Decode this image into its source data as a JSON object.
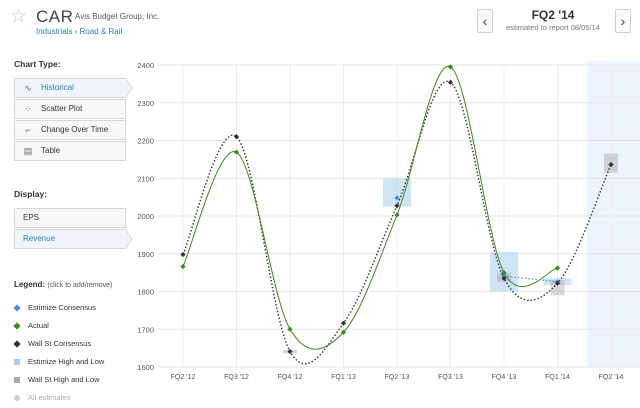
{
  "header": {
    "star_icon": "star-outline-icon",
    "ticker": "CAR",
    "company": "Avis Budget Group, Inc.",
    "breadcrumb_sector": "Industrials",
    "breadcrumb_separator": "›",
    "breadcrumb_industry": "Road & Rail",
    "prev_label": "‹",
    "next_label": "›",
    "quarter": "FQ2 '14",
    "report_note": "estimated to report 08/05/14"
  },
  "sidebar": {
    "chart_type_title": "Chart Type:",
    "chart_types": [
      {
        "label": "Historical",
        "icon": "line-wave-icon",
        "active": true
      },
      {
        "label": "Scatter Plot",
        "icon": "scatter-dots-icon",
        "active": false
      },
      {
        "label": "Change Over Time",
        "icon": "step-change-icon",
        "active": false
      },
      {
        "label": "Table",
        "icon": "table-grid-icon",
        "active": false
      }
    ],
    "display_title": "Display:",
    "display_options": [
      {
        "label": "EPS",
        "active": false
      },
      {
        "label": "Revenue",
        "active": true
      }
    ]
  },
  "legend": {
    "title": "Legend:",
    "hint": "(click to add/remove)",
    "items": [
      {
        "label": "Estimize Consensus",
        "color": "#4a90d9",
        "shape": "diamond"
      },
      {
        "label": "Actual",
        "color": "#3a8a1e",
        "shape": "diamond"
      },
      {
        "label": "Wall St Consensus",
        "color": "#333333",
        "shape": "diamond"
      },
      {
        "label": "Estimize High and Low",
        "color": "#a9cdf0",
        "shape": "square"
      },
      {
        "label": "Wall St High and Low",
        "color": "#a8a8a8",
        "shape": "square"
      },
      {
        "label": "All estimates",
        "color": "#cfcfcf",
        "shape": "circle",
        "muted": true
      }
    ]
  },
  "chart_data": {
    "type": "line",
    "categories": [
      "FQ2 '12",
      "FQ3 '12",
      "FQ4 '12",
      "FQ1 '13",
      "FQ2 '13",
      "FQ3 '13",
      "FQ4 '13",
      "FQ1 '14",
      "FQ2 '14"
    ],
    "y_ticks": [
      1600,
      1700,
      1800,
      1900,
      2000,
      2100,
      2200,
      2300,
      2400
    ],
    "ylim": [
      1600,
      2400
    ],
    "grid": true,
    "series": [
      {
        "name": "Actual",
        "color": "#3a8a1e",
        "style": "solid",
        "values": [
          1866,
          2169,
          1700,
          1692,
          2003,
          2395,
          1850,
          1862,
          null
        ]
      },
      {
        "name": "Wall St Consensus",
        "color": "#333333",
        "style": "dotted",
        "values": [
          1898,
          2210,
          1641,
          1716,
          2027,
          2354,
          1835,
          1822,
          2136
        ]
      },
      {
        "name": "Estimize Consensus",
        "color": "#4a90d9",
        "style": "dotted",
        "values": [
          null,
          null,
          null,
          null,
          2048,
          null,
          1841,
          1826,
          null
        ]
      }
    ],
    "estimize_range": [
      {
        "category": "FQ2 '13",
        "low": 2025,
        "high": 2100
      },
      {
        "category": "FQ4 '13",
        "low": 1800,
        "high": 1905
      },
      {
        "category": "FQ1 '14",
        "low": 1817,
        "high": 1835
      }
    ],
    "wallst_range": [
      {
        "category": "FQ4 '12",
        "low": 1636,
        "high": 1645
      },
      {
        "category": "FQ4 '13",
        "low": 1825,
        "high": 1850
      },
      {
        "category": "FQ1 '14",
        "low": 1790,
        "high": 1830
      },
      {
        "category": "FQ2 '14",
        "low": 2115,
        "high": 2165
      }
    ],
    "highlight_category": "FQ2 '14"
  }
}
